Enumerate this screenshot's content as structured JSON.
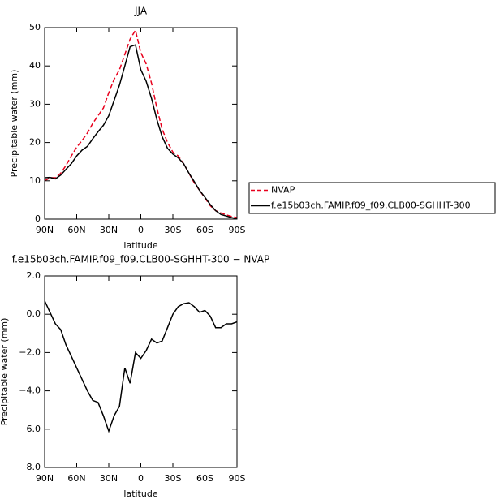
{
  "chart_data": [
    {
      "type": "line",
      "title": "JJA",
      "x_label": "latitude",
      "y_label": "Precipitable water (mm)",
      "x": [
        90,
        85,
        80,
        75,
        70,
        65,
        60,
        55,
        50,
        45,
        40,
        35,
        30,
        25,
        20,
        15,
        10,
        5,
        0,
        -5,
        -10,
        -15,
        -20,
        -25,
        -30,
        -35,
        -40,
        -45,
        -50,
        -55,
        -60,
        -65,
        -70,
        -75,
        -80,
        -85,
        -90
      ],
      "series": [
        {
          "name": "NVAP",
          "color": "#e8001c",
          "dash": true,
          "values": [
            10.0,
            10.8,
            10.8,
            12,
            14,
            16.5,
            18.8,
            20.5,
            22.5,
            25,
            27,
            29,
            33,
            36.5,
            39,
            43,
            47,
            49.3,
            43.5,
            40.5,
            35.5,
            29,
            23.5,
            20,
            17.5,
            16.5,
            14.5,
            12,
            9.5,
            7.5,
            5.5,
            3.5,
            2.2,
            1.6,
            1.1,
            0.7,
            0.4
          ]
        },
        {
          "name": "f.e15b03ch.FAMIP.f09_f09.CLB00-SGHHT-300",
          "color": "#000000",
          "dash": false,
          "values": [
            10.8,
            10.9,
            10.5,
            11.5,
            13,
            14.5,
            16.5,
            18,
            19,
            21,
            22.8,
            24.5,
            27,
            31,
            35,
            40,
            45,
            45.5,
            39,
            36,
            31.5,
            26,
            21.5,
            18.5,
            17,
            16,
            14.5,
            12,
            9.8,
            7.5,
            5.7,
            3.8,
            2.2,
            1.2,
            0.8,
            0.4,
            0.1
          ]
        }
      ],
      "xlim": [
        90,
        -90
      ],
      "xticks": [
        {
          "value": 90,
          "label": "90N"
        },
        {
          "value": 60,
          "label": "60N"
        },
        {
          "value": 30,
          "label": "30N"
        },
        0,
        {
          "value": -30,
          "label": "30S"
        },
        {
          "value": -60,
          "label": "60S"
        },
        {
          "value": -90,
          "label": "90S"
        }
      ],
      "ylim": [
        0,
        50
      ],
      "yticks": [
        0,
        10,
        20,
        30,
        40,
        50
      ],
      "legend": "right"
    },
    {
      "type": "line",
      "title": "f.e15b03ch.FAMIP.f09_f09.CLB00-SGHHT-300  −  NVAP",
      "x_label": "latitude",
      "y_label": "Precipitable water (mm)",
      "x": [
        90,
        85,
        80,
        75,
        70,
        65,
        60,
        55,
        50,
        45,
        40,
        35,
        30,
        25,
        20,
        15,
        10,
        5,
        0,
        -5,
        -10,
        -15,
        -20,
        -25,
        -30,
        -35,
        -40,
        -45,
        -50,
        -55,
        -60,
        -65,
        -70,
        -75,
        -80,
        -85,
        -90
      ],
      "series": [
        {
          "color": "#000000",
          "dash": false,
          "values": [
            0.7,
            0.1,
            -0.5,
            -0.8,
            -1.6,
            -2.2,
            -2.8,
            -3.4,
            -4.0,
            -4.5,
            -4.6,
            -5.3,
            -6.1,
            -5.3,
            -4.8,
            -2.8,
            -3.6,
            -2.0,
            -2.3,
            -1.9,
            -1.3,
            -1.5,
            -1.4,
            -0.7,
            0.0,
            0.4,
            0.55,
            0.6,
            0.4,
            0.1,
            0.2,
            -0.1,
            -0.7,
            -0.7,
            -0.5,
            -0.5,
            -0.4
          ]
        }
      ],
      "xlim": [
        90,
        -90
      ],
      "xticks": [
        {
          "value": 90,
          "label": "90N"
        },
        {
          "value": 60,
          "label": "60N"
        },
        {
          "value": 30,
          "label": "30N"
        },
        0,
        {
          "value": -30,
          "label": "30S"
        },
        {
          "value": -60,
          "label": "60S"
        },
        {
          "value": -90,
          "label": "90S"
        }
      ],
      "ylim": [
        -8,
        2
      ],
      "yticks": [
        {
          "value": -8,
          "label": "−8.0"
        },
        {
          "value": -6,
          "label": "−6.0"
        },
        {
          "value": -4,
          "label": "−4.0"
        },
        {
          "value": -2,
          "label": "−2.0"
        },
        {
          "value": 0,
          "label": "0.0"
        },
        {
          "value": 2,
          "label": "2.0"
        }
      ]
    }
  ]
}
